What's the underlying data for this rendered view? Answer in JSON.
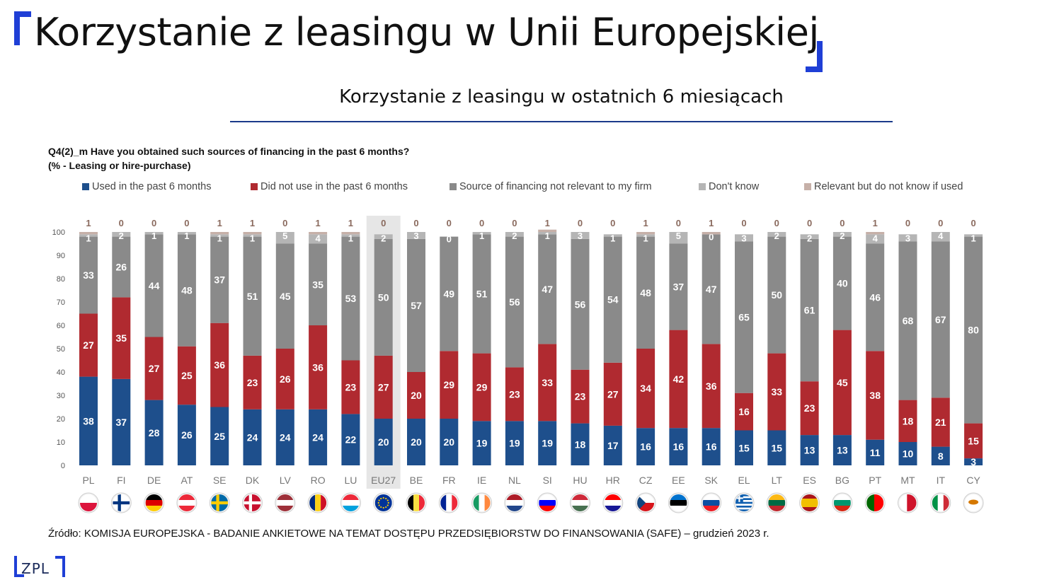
{
  "title": "Korzystanie z leasingu w Unii Europejskiej",
  "subtitle": "Korzystanie z leasingu w ostatnich 6 miesiącach",
  "source": "Źródło: KOMISJA EUROPEJSKA - BADANIE ANKIETOWE NA TEMAT DOSTĘPU PRZEDSIĘBIORSTW DO FINANSOWANIA (SAFE) – grudzień 2023 r.",
  "logo": "ZPL",
  "colors": {
    "accent": "#1f3fd6",
    "rule": "#1a3a8a"
  },
  "chart_data": {
    "type": "bar",
    "stacked": true,
    "title": "Q4(2)_m Have you obtained such sources of financing in the past 6 months?",
    "subtitle": "(% - Leasing or hire-purchase)",
    "ylim": [
      0,
      100
    ],
    "yticks": [
      0,
      10,
      20,
      30,
      40,
      50,
      60,
      70,
      80,
      90,
      100
    ],
    "grid": false,
    "legend_position": "top",
    "highlight_category": "EU27",
    "categories": [
      "PL",
      "FI",
      "DE",
      "AT",
      "SE",
      "DK",
      "LV",
      "RO",
      "LU",
      "EU27",
      "BE",
      "FR",
      "IE",
      "NL",
      "SI",
      "HU",
      "HR",
      "CZ",
      "EE",
      "SK",
      "EL",
      "LT",
      "ES",
      "BG",
      "PT",
      "MT",
      "IT",
      "CY"
    ],
    "series": [
      {
        "name": "Used in the past 6 months",
        "color": "#1e4f8c",
        "values": [
          38,
          37,
          28,
          26,
          25,
          24,
          24,
          24,
          22,
          20,
          20,
          20,
          19,
          19,
          19,
          18,
          17,
          16,
          16,
          16,
          15,
          15,
          13,
          13,
          11,
          10,
          8,
          3
        ]
      },
      {
        "name": "Did not use in the past 6 months",
        "color": "#b02a30",
        "values": [
          27,
          35,
          27,
          25,
          36,
          23,
          26,
          36,
          23,
          27,
          20,
          29,
          29,
          23,
          33,
          23,
          27,
          34,
          42,
          36,
          16,
          33,
          23,
          45,
          38,
          18,
          21,
          15
        ]
      },
      {
        "name": "Source of financing not relevant to my firm",
        "color": "#8a8a8a",
        "values": [
          33,
          26,
          44,
          48,
          37,
          51,
          45,
          35,
          53,
          50,
          57,
          49,
          51,
          56,
          47,
          56,
          54,
          48,
          37,
          47,
          65,
          50,
          61,
          40,
          46,
          68,
          67,
          80
        ]
      },
      {
        "name": "Don't know",
        "color": "#b5b5b5",
        "values": [
          1,
          2,
          1,
          1,
          1,
          1,
          5,
          4,
          1,
          2,
          3,
          0,
          1,
          2,
          1,
          3,
          1,
          1,
          5,
          0,
          3,
          2,
          2,
          2,
          4,
          3,
          4,
          1
        ]
      },
      {
        "name": "Relevant but do not know if used",
        "color": "#c6b0a8",
        "values": [
          1,
          0,
          0,
          0,
          1,
          1,
          0,
          1,
          1,
          0,
          0,
          0,
          0,
          0,
          1,
          0,
          0,
          1,
          0,
          1,
          0,
          0,
          0,
          0,
          1,
          0,
          0,
          0
        ]
      }
    ],
    "flags": [
      "PL",
      "FI",
      "DE",
      "AT",
      "SE",
      "DK",
      "LV",
      "RO",
      "LU",
      "EU27",
      "BE",
      "FR",
      "IE",
      "NL",
      "SI",
      "HU",
      "HR",
      "CZ",
      "EE",
      "SK",
      "EL",
      "LT",
      "ES",
      "BG",
      "PT",
      "MT",
      "IT",
      "CY"
    ]
  }
}
